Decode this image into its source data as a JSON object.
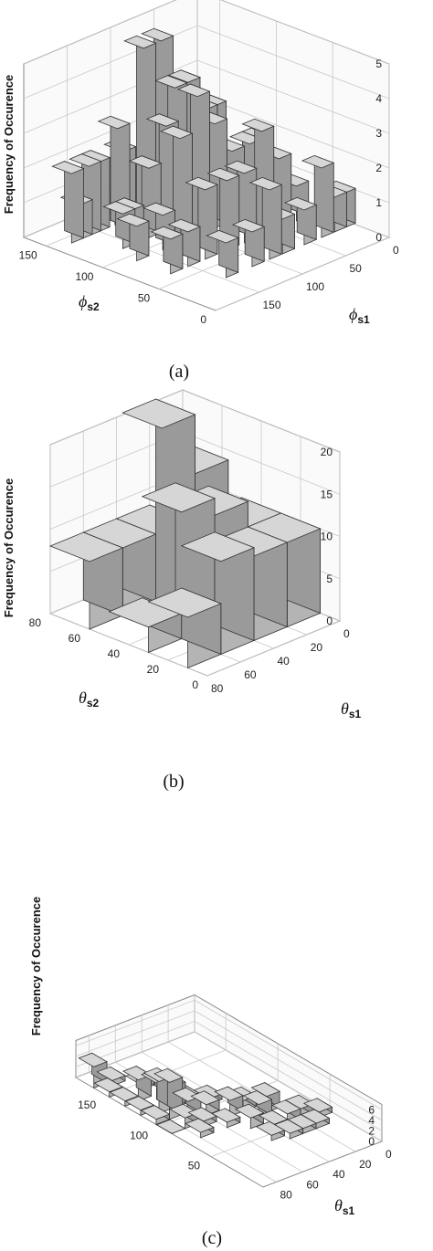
{
  "chart_data": [
    {
      "type": "bar3d",
      "caption": "(a)",
      "zlabel": "Frequency of Occurence",
      "xlabel": "ϕ",
      "xlabel_sub": "s1",
      "ylabel": "ϕ",
      "ylabel_sub": "s2",
      "zlim": [
        0,
        5
      ],
      "zticks": [
        0,
        1,
        2,
        3,
        4,
        5
      ],
      "xticks": [
        0,
        50,
        100,
        150
      ],
      "yticks": [
        0,
        50,
        100,
        150
      ],
      "grid": true,
      "bar_color": "#b8b8b8",
      "bars": [
        {
          "x": 175,
          "y": 150,
          "z": 2
        },
        {
          "x": 165,
          "y": 150,
          "z": 1
        },
        {
          "x": 155,
          "y": 150,
          "z": 2
        },
        {
          "x": 145,
          "y": 150,
          "z": 2
        },
        {
          "x": 125,
          "y": 150,
          "z": 1
        },
        {
          "x": 115,
          "y": 150,
          "z": 2
        },
        {
          "x": 135,
          "y": 140,
          "z": 3
        },
        {
          "x": 105,
          "y": 140,
          "z": 5
        },
        {
          "x": 85,
          "y": 140,
          "z": 5
        },
        {
          "x": 70,
          "y": 140,
          "z": 3
        },
        {
          "x": 155,
          "y": 120,
          "z": 1
        },
        {
          "x": 145,
          "y": 120,
          "z": 1
        },
        {
          "x": 125,
          "y": 120,
          "z": 2
        },
        {
          "x": 105,
          "y": 120,
          "z": 3
        },
        {
          "x": 95,
          "y": 120,
          "z": 4
        },
        {
          "x": 80,
          "y": 120,
          "z": 4
        },
        {
          "x": 60,
          "y": 120,
          "z": 3
        },
        {
          "x": 50,
          "y": 120,
          "z": 3
        },
        {
          "x": 165,
          "y": 100,
          "z": 1
        },
        {
          "x": 135,
          "y": 100,
          "z": 1
        },
        {
          "x": 115,
          "y": 100,
          "z": 3
        },
        {
          "x": 95,
          "y": 100,
          "z": 4
        },
        {
          "x": 75,
          "y": 100,
          "z": 3
        },
        {
          "x": 55,
          "y": 100,
          "z": 2
        },
        {
          "x": 35,
          "y": 100,
          "z": 2
        },
        {
          "x": 25,
          "y": 100,
          "z": 2
        },
        {
          "x": 165,
          "y": 70,
          "z": 1
        },
        {
          "x": 145,
          "y": 70,
          "z": 1
        },
        {
          "x": 125,
          "y": 70,
          "z": 2
        },
        {
          "x": 100,
          "y": 70,
          "z": 2
        },
        {
          "x": 80,
          "y": 70,
          "z": 2
        },
        {
          "x": 60,
          "y": 70,
          "z": 3
        },
        {
          "x": 40,
          "y": 70,
          "z": 2
        },
        {
          "x": 20,
          "y": 70,
          "z": 1
        },
        {
          "x": 140,
          "y": 40,
          "z": 1
        },
        {
          "x": 110,
          "y": 40,
          "z": 1
        },
        {
          "x": 90,
          "y": 40,
          "z": 2
        },
        {
          "x": 75,
          "y": 40,
          "z": 1
        },
        {
          "x": 50,
          "y": 40,
          "z": 1
        },
        {
          "x": 30,
          "y": 40,
          "z": 2
        },
        {
          "x": 15,
          "y": 40,
          "z": 1
        },
        {
          "x": 5,
          "y": 40,
          "z": 1
        }
      ]
    },
    {
      "type": "bar3d",
      "caption": "(b)",
      "zlabel": "Frequency of Occurence",
      "xlabel": "θ",
      "xlabel_sub": "s1",
      "ylabel": "θ",
      "ylabel_sub": "s2",
      "zlim": [
        0,
        20
      ],
      "zticks": [
        0,
        5,
        10,
        15,
        20
      ],
      "xticks": [
        0,
        20,
        40,
        60,
        80
      ],
      "yticks": [
        0,
        20,
        40,
        60,
        80
      ],
      "grid": true,
      "bar_color": "#b8b8b8",
      "bars": [
        {
          "x": 70,
          "y": 70,
          "z": 8
        },
        {
          "x": 50,
          "y": 70,
          "z": 8
        },
        {
          "x": 30,
          "y": 70,
          "z": 8
        },
        {
          "x": 50,
          "y": 50,
          "z": 24
        },
        {
          "x": 30,
          "y": 50,
          "z": 17
        },
        {
          "x": 70,
          "y": 40,
          "z": 3
        },
        {
          "x": 50,
          "y": 40,
          "z": 15
        },
        {
          "x": 30,
          "y": 40,
          "z": 13
        },
        {
          "x": 10,
          "y": 40,
          "z": 10
        },
        {
          "x": 70,
          "y": 20,
          "z": 6
        },
        {
          "x": 50,
          "y": 20,
          "z": 11
        },
        {
          "x": 30,
          "y": 20,
          "z": 10
        },
        {
          "x": 10,
          "y": 20,
          "z": 10
        }
      ]
    },
    {
      "type": "bar3d",
      "caption": "(c)",
      "zlabel": "Frequency of Occurence",
      "xlabel": "θ",
      "xlabel_sub": "s1",
      "zlim": [
        0,
        7
      ],
      "zticks": [
        0,
        2,
        4,
        6
      ],
      "xticks": [
        0,
        20,
        40,
        60,
        80
      ],
      "yticks": [
        50,
        100,
        150
      ],
      "grid": true,
      "bar_color": "#b8b8b8",
      "bars": [
        {
          "x": 85,
          "y": 170,
          "z": 4
        },
        {
          "x": 85,
          "y": 155,
          "z": 1
        },
        {
          "x": 85,
          "y": 140,
          "z": 1
        },
        {
          "x": 85,
          "y": 125,
          "z": 1
        },
        {
          "x": 85,
          "y": 110,
          "z": 1
        },
        {
          "x": 85,
          "y": 95,
          "z": 0
        },
        {
          "x": 75,
          "y": 165,
          "z": 1
        },
        {
          "x": 75,
          "y": 140,
          "z": 4
        },
        {
          "x": 75,
          "y": 120,
          "z": 6
        },
        {
          "x": 75,
          "y": 110,
          "z": 7
        },
        {
          "x": 75,
          "y": 95,
          "z": 2
        },
        {
          "x": 75,
          "y": 80,
          "z": 1
        },
        {
          "x": 65,
          "y": 150,
          "z": 1
        },
        {
          "x": 65,
          "y": 135,
          "z": 3
        },
        {
          "x": 65,
          "y": 120,
          "z": 4
        },
        {
          "x": 65,
          "y": 105,
          "z": 3
        },
        {
          "x": 65,
          "y": 90,
          "z": 1
        },
        {
          "x": 55,
          "y": 140,
          "z": 1
        },
        {
          "x": 55,
          "y": 120,
          "z": 1
        },
        {
          "x": 55,
          "y": 100,
          "z": 2
        },
        {
          "x": 55,
          "y": 80,
          "z": 1
        },
        {
          "x": 45,
          "y": 110,
          "z": 1
        },
        {
          "x": 45,
          "y": 90,
          "z": 3
        },
        {
          "x": 45,
          "y": 70,
          "z": 2
        },
        {
          "x": 45,
          "y": 50,
          "z": 1
        },
        {
          "x": 35,
          "y": 90,
          "z": 2
        },
        {
          "x": 35,
          "y": 75,
          "z": 3
        },
        {
          "x": 35,
          "y": 60,
          "z": 1
        },
        {
          "x": 35,
          "y": 45,
          "z": 1
        },
        {
          "x": 25,
          "y": 80,
          "z": 3
        },
        {
          "x": 25,
          "y": 60,
          "z": 2
        },
        {
          "x": 25,
          "y": 45,
          "z": 1
        },
        {
          "x": 15,
          "y": 60,
          "z": 2
        },
        {
          "x": 15,
          "y": 45,
          "z": 1
        },
        {
          "x": 5,
          "y": 55,
          "z": 1
        }
      ]
    }
  ]
}
